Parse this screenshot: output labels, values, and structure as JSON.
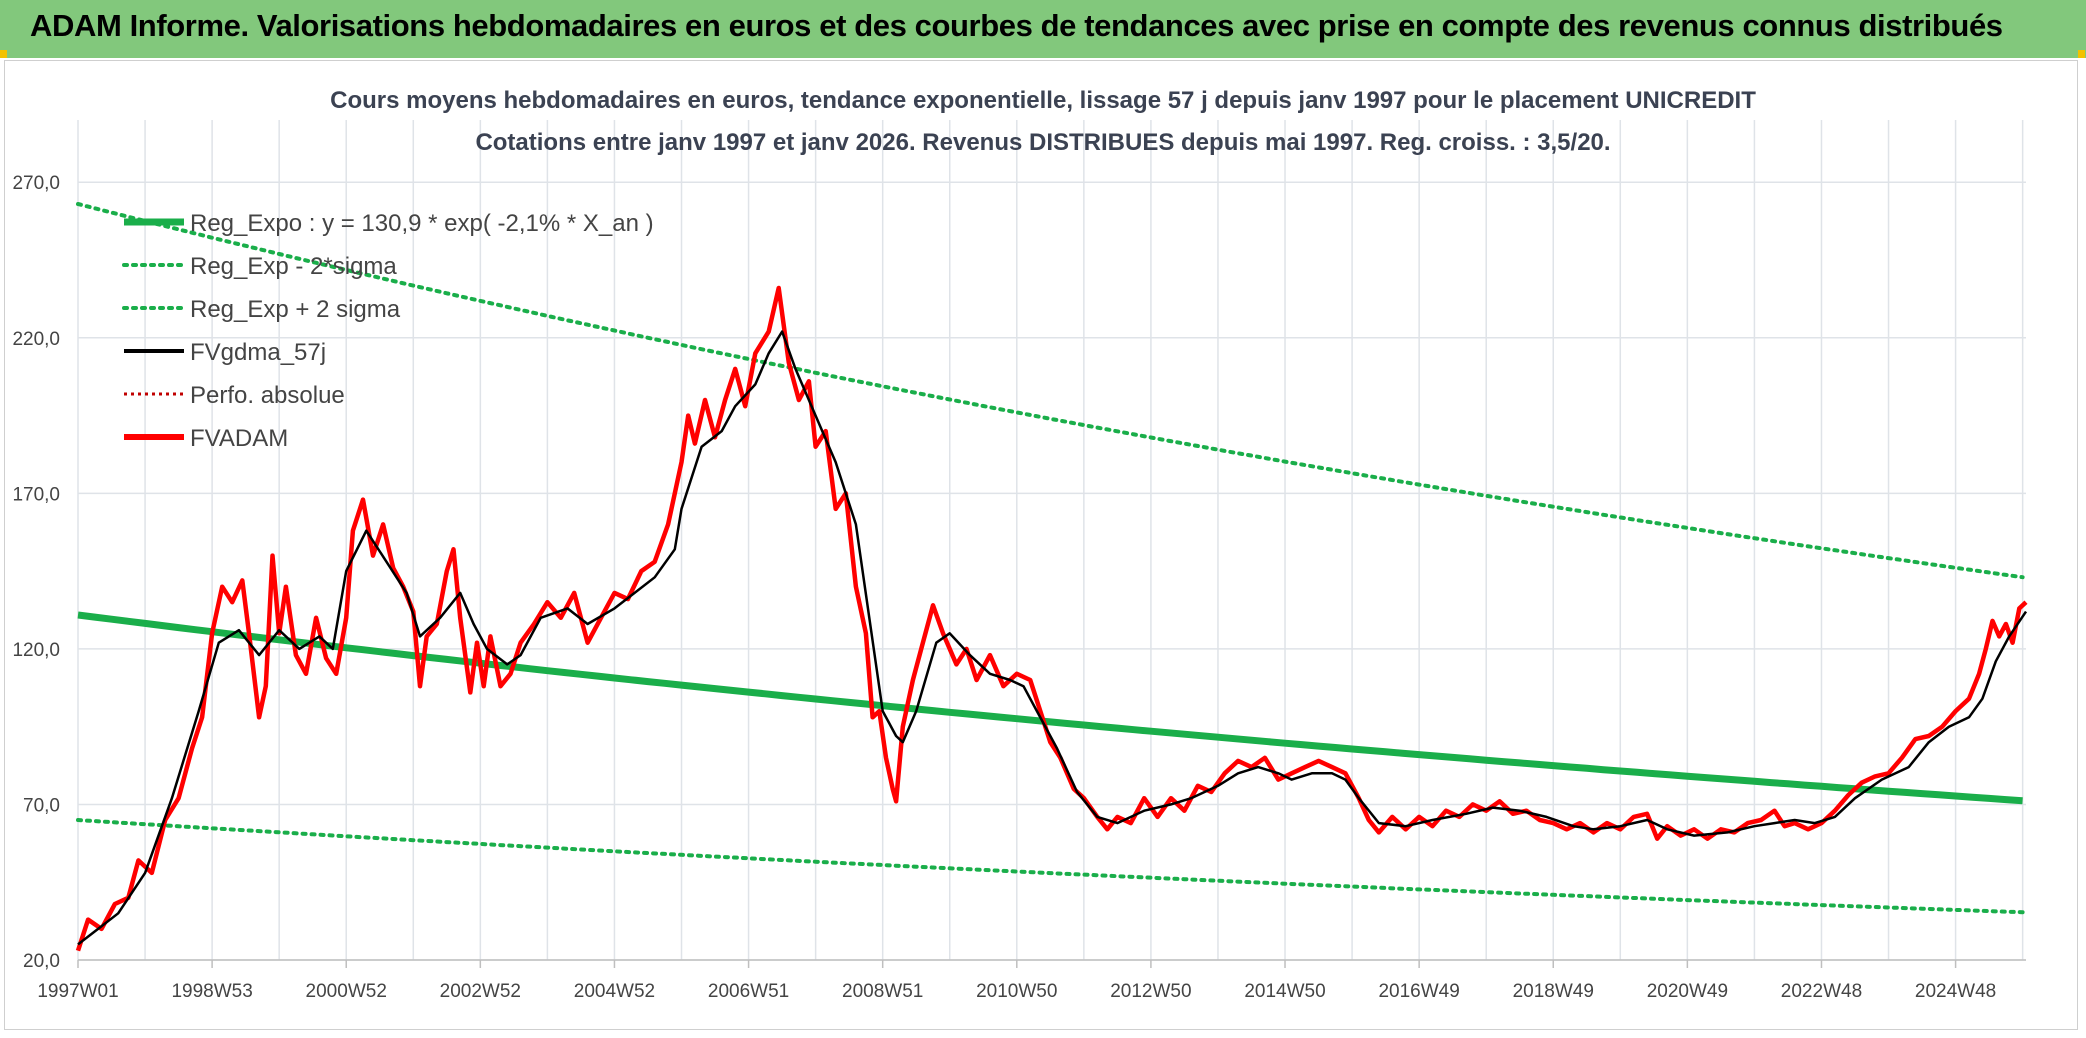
{
  "header": {
    "title": "ADAM Informe. Valorisations hebdomadaires en euros et des courbes de tendances avec prise en compte des revenus connus distribués"
  },
  "colors": {
    "banner": "#82c87c",
    "reg_expo": "#1aae4a",
    "sigma": "#1aae4a",
    "fvgdma": "#000000",
    "fvadam": "#ff0000",
    "perfo": "#c00000",
    "grid": "#dfe3e8"
  },
  "chart_data": {
    "type": "line",
    "title_line1": "Cours moyens hebdomadaires en euros, tendance exponentielle, lissage 57 j depuis janv 1997 pour le placement UNICREDIT",
    "title_line2": "Cotations entre janv 1997 et janv 2026. Revenus DISTRIBUES depuis mai 1997. Reg. croiss. : 3,5/20.",
    "xlabel": "",
    "ylabel": "",
    "x_range": [
      1997.0,
      2026.05
    ],
    "ylim": [
      20,
      290
    ],
    "y_ticks": [
      "20,0",
      "70,0",
      "120,0",
      "170,0",
      "220,0",
      "270,0"
    ],
    "y_tick_values": [
      20,
      70,
      120,
      170,
      220,
      270
    ],
    "x_ticks": [
      {
        "label": "1997W01",
        "year": 1997.0
      },
      {
        "label": "1998W53",
        "year": 1999.0
      },
      {
        "label": "2000W52",
        "year": 2001.0
      },
      {
        "label": "2002W52",
        "year": 2003.0
      },
      {
        "label": "2004W52",
        "year": 2005.0
      },
      {
        "label": "2006W51",
        "year": 2007.0
      },
      {
        "label": "2008W51",
        "year": 2009.0
      },
      {
        "label": "2010W50",
        "year": 2011.0
      },
      {
        "label": "2012W50",
        "year": 2013.0
      },
      {
        "label": "2014W50",
        "year": 2015.0
      },
      {
        "label": "2016W49",
        "year": 2017.0
      },
      {
        "label": "2018W49",
        "year": 2019.0
      },
      {
        "label": "2020W49",
        "year": 2021.0
      },
      {
        "label": "2022W48",
        "year": 2023.0
      },
      {
        "label": "2024W48",
        "year": 2025.0
      }
    ],
    "legend": [
      {
        "key": "reg_expo",
        "label": "Reg_Expo : y = 130,9 * exp( -2,1% *  X_an )",
        "style": "solid-thick"
      },
      {
        "key": "reg_minus",
        "label": "Reg_Exp - 2*sigma",
        "style": "dotted"
      },
      {
        "key": "reg_plus",
        "label": "Reg_Exp + 2 sigma",
        "style": "dotted"
      },
      {
        "key": "fvgdma",
        "label": "FVgdma_57j",
        "style": "solid-black"
      },
      {
        "key": "perfo",
        "label": "Perfo. absolue",
        "style": "dotted-red"
      },
      {
        "key": "fvadam",
        "label": "FVADAM",
        "style": "solid-red"
      }
    ],
    "series": [
      {
        "name": "Reg_Expo",
        "type": "exp",
        "a": 130.9,
        "rate": -0.021
      },
      {
        "name": "Reg_Exp - 2*sigma",
        "type": "exp",
        "a": 65.0,
        "rate": -0.021
      },
      {
        "name": "Reg_Exp + 2 sigma",
        "type": "exp",
        "a": 263.0,
        "rate": -0.021
      },
      {
        "name": "FVgdma_57j",
        "points": [
          [
            1997.0,
            25
          ],
          [
            1997.3,
            30
          ],
          [
            1997.6,
            35
          ],
          [
            1998.0,
            48
          ],
          [
            1998.4,
            72
          ],
          [
            1998.8,
            100
          ],
          [
            1999.1,
            122
          ],
          [
            1999.4,
            126
          ],
          [
            1999.7,
            118
          ],
          [
            2000.0,
            126
          ],
          [
            2000.3,
            120
          ],
          [
            2000.6,
            124
          ],
          [
            2000.8,
            120
          ],
          [
            2001.0,
            145
          ],
          [
            2001.3,
            158
          ],
          [
            2001.6,
            148
          ],
          [
            2001.9,
            138
          ],
          [
            2002.1,
            124
          ],
          [
            2002.4,
            130
          ],
          [
            2002.7,
            138
          ],
          [
            2002.9,
            128
          ],
          [
            2003.1,
            120
          ],
          [
            2003.4,
            115
          ],
          [
            2003.6,
            118
          ],
          [
            2003.9,
            130
          ],
          [
            2004.3,
            133
          ],
          [
            2004.6,
            128
          ],
          [
            2005.0,
            133
          ],
          [
            2005.3,
            138
          ],
          [
            2005.6,
            143
          ],
          [
            2005.9,
            152
          ],
          [
            2006.0,
            165
          ],
          [
            2006.3,
            185
          ],
          [
            2006.6,
            190
          ],
          [
            2006.8,
            198
          ],
          [
            2007.1,
            205
          ],
          [
            2007.3,
            215
          ],
          [
            2007.5,
            222
          ],
          [
            2007.7,
            210
          ],
          [
            2008.0,
            195
          ],
          [
            2008.3,
            180
          ],
          [
            2008.6,
            160
          ],
          [
            2008.8,
            130
          ],
          [
            2009.0,
            100
          ],
          [
            2009.2,
            92
          ],
          [
            2009.3,
            90
          ],
          [
            2009.5,
            100
          ],
          [
            2009.8,
            122
          ],
          [
            2010.0,
            125
          ],
          [
            2010.3,
            118
          ],
          [
            2010.6,
            112
          ],
          [
            2010.9,
            110
          ],
          [
            2011.1,
            108
          ],
          [
            2011.3,
            100
          ],
          [
            2011.6,
            88
          ],
          [
            2011.9,
            74
          ],
          [
            2012.2,
            66
          ],
          [
            2012.5,
            64
          ],
          [
            2012.9,
            68
          ],
          [
            2013.3,
            70
          ],
          [
            2013.6,
            72
          ],
          [
            2014.0,
            76
          ],
          [
            2014.3,
            80
          ],
          [
            2014.6,
            82
          ],
          [
            2014.9,
            80
          ],
          [
            2015.1,
            78
          ],
          [
            2015.4,
            80
          ],
          [
            2015.7,
            80
          ],
          [
            2015.9,
            78
          ],
          [
            2016.1,
            72
          ],
          [
            2016.4,
            64
          ],
          [
            2016.8,
            63
          ],
          [
            2017.2,
            65
          ],
          [
            2017.7,
            67
          ],
          [
            2018.1,
            69
          ],
          [
            2018.5,
            68
          ],
          [
            2018.9,
            66
          ],
          [
            2019.3,
            63
          ],
          [
            2019.6,
            62
          ],
          [
            2020.0,
            63
          ],
          [
            2020.4,
            65
          ],
          [
            2020.7,
            62
          ],
          [
            2021.1,
            60
          ],
          [
            2021.6,
            61
          ],
          [
            2022.0,
            63
          ],
          [
            2022.3,
            64
          ],
          [
            2022.6,
            65
          ],
          [
            2022.9,
            64
          ],
          [
            2023.2,
            66
          ],
          [
            2023.5,
            72
          ],
          [
            2023.9,
            78
          ],
          [
            2024.3,
            82
          ],
          [
            2024.6,
            90
          ],
          [
            2024.9,
            95
          ],
          [
            2025.2,
            98
          ],
          [
            2025.4,
            104
          ],
          [
            2025.6,
            116
          ],
          [
            2025.8,
            124
          ],
          [
            2026.05,
            132
          ]
        ]
      },
      {
        "name": "FVADAM",
        "points": [
          [
            1997.0,
            23
          ],
          [
            1997.15,
            33
          ],
          [
            1997.35,
            30
          ],
          [
            1997.55,
            38
          ],
          [
            1997.75,
            40
          ],
          [
            1997.9,
            52
          ],
          [
            1998.1,
            48
          ],
          [
            1998.3,
            65
          ],
          [
            1998.5,
            72
          ],
          [
            1998.7,
            88
          ],
          [
            1998.85,
            98
          ],
          [
            1999.0,
            125
          ],
          [
            1999.15,
            140
          ],
          [
            1999.3,
            135
          ],
          [
            1999.45,
            142
          ],
          [
            1999.55,
            125
          ],
          [
            1999.7,
            98
          ],
          [
            1999.8,
            108
          ],
          [
            1999.9,
            150
          ],
          [
            2000.0,
            125
          ],
          [
            2000.1,
            140
          ],
          [
            2000.25,
            118
          ],
          [
            2000.4,
            112
          ],
          [
            2000.55,
            130
          ],
          [
            2000.7,
            117
          ],
          [
            2000.85,
            112
          ],
          [
            2001.0,
            130
          ],
          [
            2001.1,
            158
          ],
          [
            2001.25,
            168
          ],
          [
            2001.4,
            150
          ],
          [
            2001.55,
            160
          ],
          [
            2001.7,
            146
          ],
          [
            2001.85,
            140
          ],
          [
            2002.0,
            132
          ],
          [
            2002.1,
            108
          ],
          [
            2002.2,
            124
          ],
          [
            2002.35,
            128
          ],
          [
            2002.5,
            145
          ],
          [
            2002.6,
            152
          ],
          [
            2002.7,
            130
          ],
          [
            2002.85,
            106
          ],
          [
            2002.95,
            122
          ],
          [
            2003.05,
            108
          ],
          [
            2003.15,
            124
          ],
          [
            2003.3,
            108
          ],
          [
            2003.45,
            112
          ],
          [
            2003.6,
            122
          ],
          [
            2003.8,
            128
          ],
          [
            2004.0,
            135
          ],
          [
            2004.2,
            130
          ],
          [
            2004.4,
            138
          ],
          [
            2004.6,
            122
          ],
          [
            2004.8,
            130
          ],
          [
            2005.0,
            138
          ],
          [
            2005.2,
            136
          ],
          [
            2005.4,
            145
          ],
          [
            2005.6,
            148
          ],
          [
            2005.8,
            160
          ],
          [
            2006.0,
            180
          ],
          [
            2006.1,
            195
          ],
          [
            2006.2,
            186
          ],
          [
            2006.35,
            200
          ],
          [
            2006.5,
            188
          ],
          [
            2006.65,
            200
          ],
          [
            2006.8,
            210
          ],
          [
            2006.95,
            198
          ],
          [
            2007.1,
            215
          ],
          [
            2007.3,
            222
          ],
          [
            2007.45,
            236
          ],
          [
            2007.6,
            212
          ],
          [
            2007.75,
            200
          ],
          [
            2007.9,
            206
          ],
          [
            2008.0,
            185
          ],
          [
            2008.15,
            190
          ],
          [
            2008.3,
            165
          ],
          [
            2008.45,
            170
          ],
          [
            2008.6,
            140
          ],
          [
            2008.75,
            125
          ],
          [
            2008.85,
            98
          ],
          [
            2008.95,
            100
          ],
          [
            2009.05,
            85
          ],
          [
            2009.15,
            75
          ],
          [
            2009.2,
            71
          ],
          [
            2009.3,
            95
          ],
          [
            2009.45,
            110
          ],
          [
            2009.6,
            122
          ],
          [
            2009.75,
            134
          ],
          [
            2009.9,
            125
          ],
          [
            2010.1,
            115
          ],
          [
            2010.25,
            120
          ],
          [
            2010.4,
            110
          ],
          [
            2010.6,
            118
          ],
          [
            2010.8,
            108
          ],
          [
            2011.0,
            112
          ],
          [
            2011.2,
            110
          ],
          [
            2011.35,
            100
          ],
          [
            2011.5,
            90
          ],
          [
            2011.65,
            85
          ],
          [
            2011.85,
            75
          ],
          [
            2012.0,
            72
          ],
          [
            2012.2,
            66
          ],
          [
            2012.35,
            62
          ],
          [
            2012.5,
            66
          ],
          [
            2012.7,
            64
          ],
          [
            2012.9,
            72
          ],
          [
            2013.1,
            66
          ],
          [
            2013.3,
            72
          ],
          [
            2013.5,
            68
          ],
          [
            2013.7,
            76
          ],
          [
            2013.9,
            74
          ],
          [
            2014.1,
            80
          ],
          [
            2014.3,
            84
          ],
          [
            2014.5,
            82
          ],
          [
            2014.7,
            85
          ],
          [
            2014.9,
            78
          ],
          [
            2015.1,
            80
          ],
          [
            2015.3,
            82
          ],
          [
            2015.5,
            84
          ],
          [
            2015.7,
            82
          ],
          [
            2015.9,
            80
          ],
          [
            2016.1,
            72
          ],
          [
            2016.25,
            65
          ],
          [
            2016.4,
            61
          ],
          [
            2016.6,
            66
          ],
          [
            2016.8,
            62
          ],
          [
            2017.0,
            66
          ],
          [
            2017.2,
            63
          ],
          [
            2017.4,
            68
          ],
          [
            2017.6,
            66
          ],
          [
            2017.8,
            70
          ],
          [
            2018.0,
            68
          ],
          [
            2018.2,
            71
          ],
          [
            2018.4,
            67
          ],
          [
            2018.6,
            68
          ],
          [
            2018.8,
            65
          ],
          [
            2019.0,
            64
          ],
          [
            2019.2,
            62
          ],
          [
            2019.4,
            64
          ],
          [
            2019.6,
            61
          ],
          [
            2019.8,
            64
          ],
          [
            2020.0,
            62
          ],
          [
            2020.2,
            66
          ],
          [
            2020.4,
            67
          ],
          [
            2020.55,
            59
          ],
          [
            2020.7,
            63
          ],
          [
            2020.9,
            60
          ],
          [
            2021.1,
            62
          ],
          [
            2021.3,
            59
          ],
          [
            2021.5,
            62
          ],
          [
            2021.7,
            61
          ],
          [
            2021.9,
            64
          ],
          [
            2022.1,
            65
          ],
          [
            2022.3,
            68
          ],
          [
            2022.45,
            63
          ],
          [
            2022.6,
            64
          ],
          [
            2022.8,
            62
          ],
          [
            2023.0,
            64
          ],
          [
            2023.2,
            68
          ],
          [
            2023.4,
            73
          ],
          [
            2023.6,
            77
          ],
          [
            2023.8,
            79
          ],
          [
            2024.0,
            80
          ],
          [
            2024.2,
            85
          ],
          [
            2024.4,
            91
          ],
          [
            2024.6,
            92
          ],
          [
            2024.8,
            95
          ],
          [
            2025.0,
            100
          ],
          [
            2025.2,
            104
          ],
          [
            2025.35,
            112
          ],
          [
            2025.45,
            120
          ],
          [
            2025.55,
            129
          ],
          [
            2025.65,
            124
          ],
          [
            2025.75,
            128
          ],
          [
            2025.85,
            122
          ],
          [
            2025.95,
            133
          ],
          [
            2026.05,
            135
          ]
        ]
      }
    ]
  }
}
